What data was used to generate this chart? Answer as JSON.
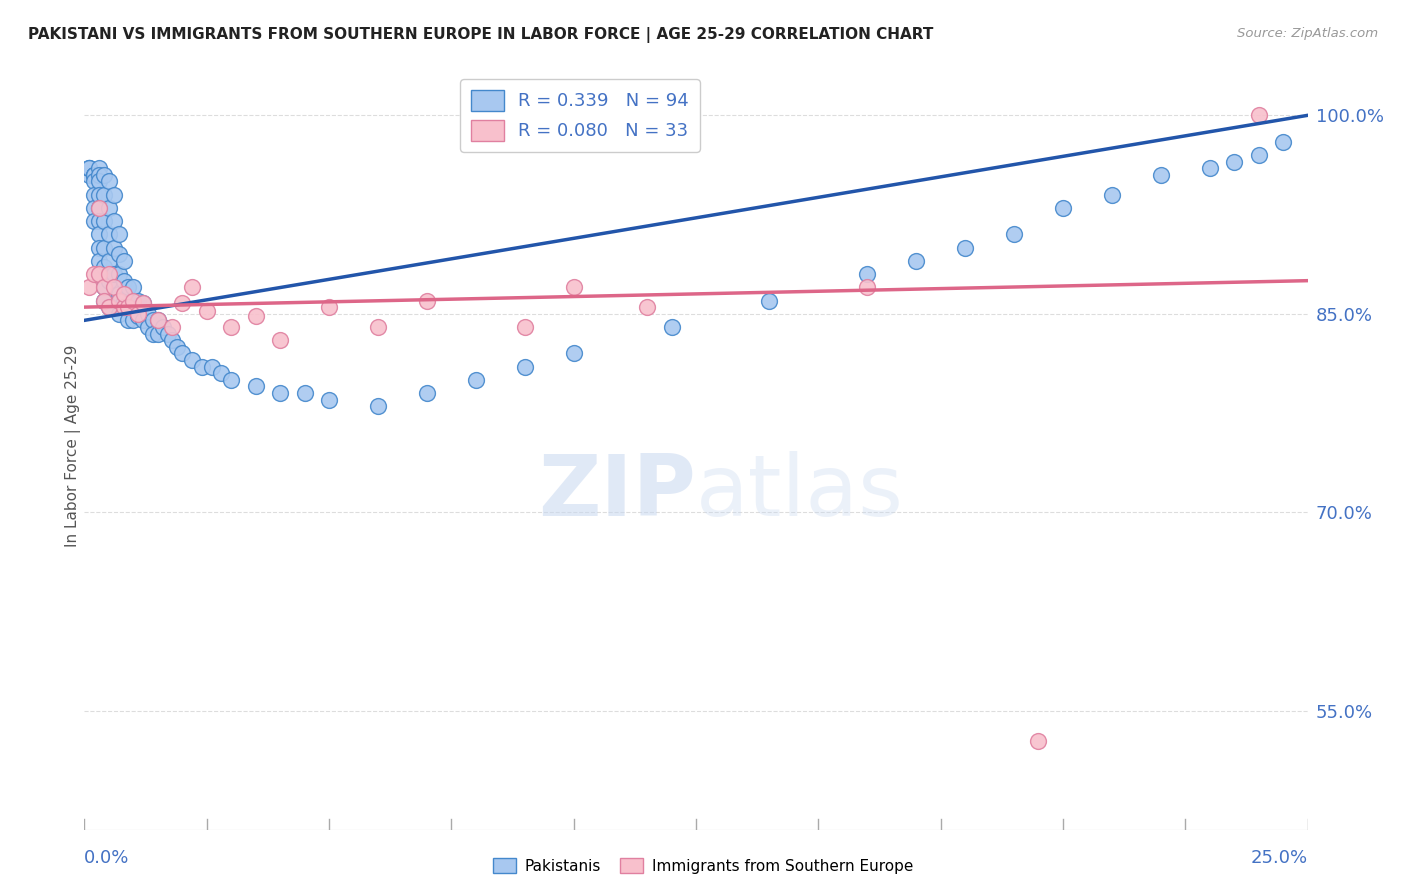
{
  "title": "PAKISTANI VS IMMIGRANTS FROM SOUTHERN EUROPE IN LABOR FORCE | AGE 25-29 CORRELATION CHART",
  "source": "Source: ZipAtlas.com",
  "ylabel": "In Labor Force | Age 25-29",
  "right_yticks": [
    55.0,
    70.0,
    85.0,
    100.0
  ],
  "xlim": [
    0.0,
    0.25
  ],
  "ylim": [
    0.46,
    1.04
  ],
  "blue_R": 0.339,
  "blue_N": 94,
  "pink_R": 0.08,
  "pink_N": 33,
  "blue_color": "#A8C8F0",
  "blue_edge_color": "#4488CC",
  "blue_line_color": "#2255AA",
  "pink_color": "#F8C0CC",
  "pink_edge_color": "#E080A0",
  "pink_line_color": "#DD6688",
  "background_color": "#FFFFFF",
  "grid_color": "#DDDDDD",
  "title_color": "#222222",
  "axis_label_color": "#4472C4",
  "watermark_color": "#C8D8F0",
  "blue_x": [
    0.001,
    0.001,
    0.001,
    0.001,
    0.002,
    0.002,
    0.002,
    0.002,
    0.002,
    0.002,
    0.002,
    0.003,
    0.003,
    0.003,
    0.003,
    0.003,
    0.003,
    0.003,
    0.003,
    0.003,
    0.003,
    0.004,
    0.004,
    0.004,
    0.004,
    0.004,
    0.004,
    0.004,
    0.005,
    0.005,
    0.005,
    0.005,
    0.005,
    0.005,
    0.006,
    0.006,
    0.006,
    0.006,
    0.007,
    0.007,
    0.007,
    0.007,
    0.007,
    0.008,
    0.008,
    0.008,
    0.009,
    0.009,
    0.009,
    0.01,
    0.01,
    0.01,
    0.011,
    0.011,
    0.012,
    0.012,
    0.013,
    0.013,
    0.014,
    0.014,
    0.015,
    0.015,
    0.016,
    0.017,
    0.018,
    0.019,
    0.02,
    0.022,
    0.024,
    0.026,
    0.028,
    0.03,
    0.035,
    0.04,
    0.045,
    0.05,
    0.06,
    0.07,
    0.08,
    0.09,
    0.1,
    0.12,
    0.14,
    0.16,
    0.17,
    0.18,
    0.19,
    0.2,
    0.21,
    0.22,
    0.23,
    0.235,
    0.24,
    0.245
  ],
  "blue_y": [
    0.955,
    0.96,
    0.96,
    0.96,
    0.955,
    0.955,
    0.955,
    0.95,
    0.94,
    0.93,
    0.92,
    0.96,
    0.955,
    0.95,
    0.94,
    0.93,
    0.92,
    0.91,
    0.9,
    0.89,
    0.88,
    0.955,
    0.94,
    0.92,
    0.9,
    0.885,
    0.87,
    0.86,
    0.95,
    0.93,
    0.91,
    0.89,
    0.875,
    0.855,
    0.94,
    0.92,
    0.9,
    0.88,
    0.91,
    0.895,
    0.88,
    0.865,
    0.85,
    0.89,
    0.875,
    0.86,
    0.87,
    0.858,
    0.845,
    0.87,
    0.858,
    0.845,
    0.86,
    0.848,
    0.858,
    0.845,
    0.85,
    0.84,
    0.845,
    0.835,
    0.845,
    0.835,
    0.84,
    0.835,
    0.83,
    0.825,
    0.82,
    0.815,
    0.81,
    0.81,
    0.805,
    0.8,
    0.795,
    0.79,
    0.79,
    0.785,
    0.78,
    0.79,
    0.8,
    0.81,
    0.82,
    0.84,
    0.86,
    0.88,
    0.89,
    0.9,
    0.91,
    0.93,
    0.94,
    0.955,
    0.96,
    0.965,
    0.97,
    0.98
  ],
  "pink_x": [
    0.001,
    0.002,
    0.003,
    0.003,
    0.004,
    0.004,
    0.005,
    0.005,
    0.006,
    0.007,
    0.008,
    0.008,
    0.009,
    0.01,
    0.011,
    0.012,
    0.015,
    0.018,
    0.02,
    0.022,
    0.025,
    0.03,
    0.035,
    0.04,
    0.05,
    0.06,
    0.07,
    0.09,
    0.1,
    0.115,
    0.16,
    0.195,
    0.24
  ],
  "pink_y": [
    0.87,
    0.88,
    0.93,
    0.88,
    0.87,
    0.86,
    0.88,
    0.855,
    0.87,
    0.86,
    0.855,
    0.865,
    0.855,
    0.86,
    0.85,
    0.858,
    0.845,
    0.84,
    0.858,
    0.87,
    0.852,
    0.84,
    0.848,
    0.83,
    0.855,
    0.84,
    0.86,
    0.84,
    0.87,
    0.855,
    0.87,
    0.527,
    1.0
  ],
  "blue_trend_x0": 0.0,
  "blue_trend_x1": 0.25,
  "blue_trend_y0": 0.845,
  "blue_trend_y1": 1.0,
  "pink_trend_x0": 0.0,
  "pink_trend_x1": 0.25,
  "pink_trend_y0": 0.855,
  "pink_trend_y1": 0.875
}
